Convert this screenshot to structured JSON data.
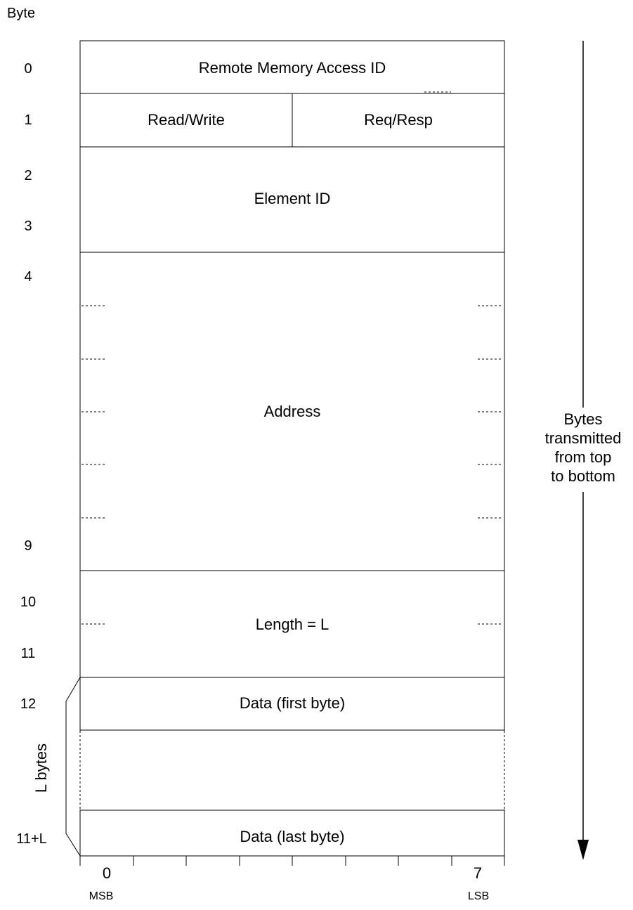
{
  "header": {
    "label": "Byte"
  },
  "byte_labels": {
    "b0": "0",
    "b1": "1",
    "b2": "2",
    "b3": "3",
    "b4": "4",
    "b9": "9",
    "b10": "10",
    "b11": "11",
    "b12": "12",
    "b11L": "11+L"
  },
  "fields": {
    "rma_id": "Remote Memory Access ID",
    "read_write": "Read/Write",
    "req_resp": "Req/Resp",
    "element_id": "Element ID",
    "address": "Address",
    "length": "Length = L",
    "data_first": "Data (first byte)",
    "data_last": "Data (last byte)"
  },
  "bit_axis": {
    "first": "0",
    "last": "7",
    "msb": "MSB",
    "lsb": "LSB"
  },
  "side_note": {
    "line1": "Bytes",
    "line2": "transmitted",
    "line3": "from top",
    "line4": "to bottom"
  },
  "brace_label": "L bytes"
}
